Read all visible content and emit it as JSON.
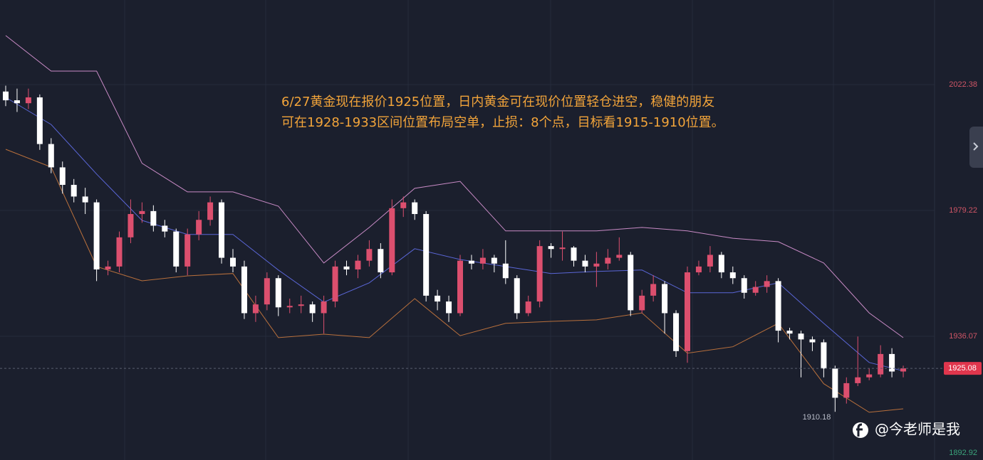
{
  "chart_data": {
    "type": "candlestick",
    "annotation": [
      "6/27黄金现在报价1925位置，日内黄金可在现价位置轻仓进空，稳健的朋友",
      "可在1928-1933区间位置布局空单，止损：8个点，目标看1915-1910位置。"
    ],
    "open": [
      2020,
      2017,
      2016,
      2018,
      2002,
      1994,
      1988,
      1984,
      1982,
      1959,
      1960,
      1970,
      1978,
      1979,
      1974,
      1972,
      1960,
      1971,
      1976,
      1982,
      1963,
      1960,
      1944,
      1947,
      1956,
      1946,
      1946.5,
      1947,
      1944,
      1948,
      1960,
      1959,
      1962,
      1966,
      1958,
      1980,
      1982,
      1978,
      1950,
      1948,
      1944,
      1962,
      1961,
      1963,
      1961,
      1956,
      1944,
      1948,
      1967,
      1966,
      1966.5,
      1962,
      1960,
      1961,
      1963,
      1964,
      1945,
      1950,
      1954,
      1944,
      1931,
      1958,
      1960,
      1964,
      1958,
      1956,
      1951,
      1953,
      1955,
      1938,
      1937,
      1935,
      1934,
      1925,
      1915,
      1920,
      1922,
      1923,
      1930,
      1924
    ],
    "high": [
      2022,
      2021,
      2021,
      2019,
      2004,
      1996,
      1990,
      1987,
      1983,
      1962,
      1972,
      1983,
      1982,
      1981,
      1976,
      1973,
      1973,
      1979,
      1984,
      1983,
      1966,
      1962,
      1950,
      1958,
      1957,
      1949,
      1950,
      1948,
      1950,
      1962,
      1962,
      1964,
      1969,
      1968,
      1983,
      1984,
      1983,
      1979,
      1952,
      1950,
      1964,
      1964,
      1966,
      1964,
      1969,
      1957,
      1950,
      1969,
      1968,
      1972,
      1967,
      1964,
      1965,
      1966,
      1970,
      1965,
      1952,
      1957,
      1955,
      1945,
      1960,
      1962,
      1967,
      1965,
      1960,
      1957,
      1955,
      1957,
      1956,
      1939,
      1938,
      1936,
      1935,
      1926,
      1922,
      1936,
      1925,
      1933,
      1932,
      1926
    ],
    "low": [
      2015,
      2013,
      2014,
      2000,
      1992,
      1985,
      1982,
      1978,
      1955,
      1957,
      1958,
      1968,
      1975,
      1972,
      1970,
      1958,
      1957,
      1969,
      1974,
      1961,
      1958,
      1942,
      1941,
      1945,
      1943,
      1944,
      1944,
      1941,
      1937,
      1946,
      1957,
      1956,
      1960,
      1956,
      1957,
      1977,
      1976,
      1948,
      1945,
      1941,
      1943,
      1959,
      1959,
      1958,
      1954,
      1942,
      1943,
      1946,
      1963,
      1962,
      1960,
      1958,
      1953,
      1959,
      1962,
      1943,
      1944,
      1948,
      1937,
      1929,
      1927,
      1957,
      1958,
      1956,
      1954,
      1949,
      1950,
      1951,
      1934,
      1935,
      1922,
      1931,
      1922,
      1910.18,
      1913,
      1919,
      1921,
      1922,
      1922,
      1922
    ],
    "close": [
      2017,
      2016,
      2018,
      2002,
      1994,
      1988,
      1984,
      1982,
      1959,
      1960,
      1970,
      1978,
      1979,
      1974,
      1972,
      1960,
      1971,
      1976,
      1982,
      1963,
      1960,
      1944,
      1947,
      1956,
      1946,
      1946.5,
      1947,
      1944,
      1948,
      1960,
      1959,
      1962,
      1966,
      1958,
      1980,
      1982,
      1978,
      1950,
      1948,
      1944,
      1962,
      1961,
      1963,
      1961,
      1956,
      1944,
      1948,
      1967,
      1966,
      1966.5,
      1962,
      1960,
      1961,
      1963,
      1964,
      1945,
      1950,
      1954,
      1944,
      1931,
      1958,
      1960,
      1964,
      1958,
      1956,
      1951,
      1953,
      1955,
      1938,
      1937,
      1935,
      1934,
      1925,
      1915,
      1920,
      1922,
      1923,
      1930,
      1924,
      1925.08
    ],
    "up_color": "#dc4f6e",
    "down_color": "#ffffff",
    "lines": [
      {
        "color": "#c98bc6",
        "x": [
          0,
          4,
          8,
          12,
          16,
          20,
          24,
          28,
          32,
          36,
          40,
          44,
          48,
          52,
          56,
          60,
          64,
          68,
          72,
          76,
          79
        ],
        "values": [
          2039.2,
          2027.0,
          2027.0,
          1995.4,
          1985.6,
          1985.6,
          1980.7,
          1961.2,
          1973.4,
          1986.8,
          1989.2,
          1972.2,
          1972.2,
          1972.2,
          1973.4,
          1972.2,
          1969.7,
          1968.5,
          1961.2,
          1944.1,
          1935.6
        ]
      },
      {
        "color": "#5a66d6",
        "x": [
          0,
          4,
          8,
          12,
          16,
          20,
          24,
          28,
          32,
          36,
          40,
          44,
          48,
          52,
          56,
          60,
          64,
          68,
          72,
          76,
          79
        ],
        "values": [
          2018.0,
          2008.7,
          1991.7,
          1975.8,
          1971.0,
          1971.0,
          1958.8,
          1947.8,
          1954.4,
          1966.1,
          1962.4,
          1960.0,
          1957.6,
          1958.3,
          1958.8,
          1951.0,
          1951.0,
          1954.4,
          1940.5,
          1927.1,
          1924.2
        ]
      },
      {
        "color": "#b9703c",
        "x": [
          0,
          4,
          8,
          12,
          16,
          20,
          24,
          28,
          32,
          36,
          40,
          44,
          48,
          52,
          56,
          60,
          64,
          68,
          72,
          76,
          79
        ],
        "values": [
          2000.2,
          1994.1,
          1960.0,
          1955.1,
          1956.8,
          1957.6,
          1935.6,
          1936.8,
          1935.6,
          1949.0,
          1936.3,
          1940.5,
          1941.2,
          1941.7,
          1944.1,
          1930.3,
          1932.5,
          1940.5,
          1919.8,
          1910.0,
          1911.2
        ]
      }
    ],
    "ylim": [
      1892.92,
      2051.39
    ],
    "yticks": [
      1892.92,
      1936.07,
      1979.22,
      2022.38
    ],
    "grid": true
  },
  "watermark": "@今老师是我"
}
